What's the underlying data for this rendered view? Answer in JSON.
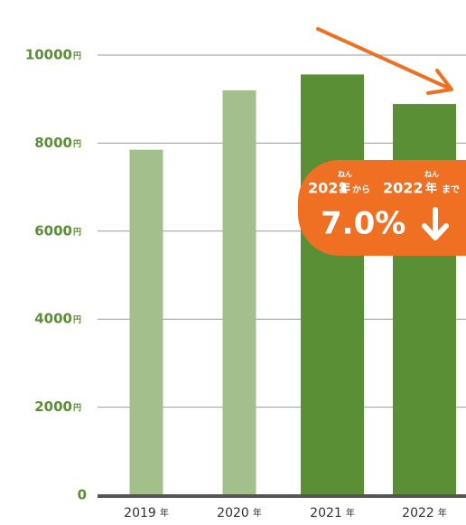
{
  "chart_data": {
    "type": "bar",
    "categories": [
      "2019",
      "2020",
      "2021",
      "2022"
    ],
    "x_unit": "年",
    "values": [
      7850,
      9200,
      9560,
      8890
    ],
    "colors": [
      "#a3bf8c",
      "#a3bf8c",
      "#5b8f36",
      "#5b8f36"
    ],
    "ylim": [
      0,
      10000
    ],
    "yticks": [
      0,
      2000,
      4000,
      6000,
      8000,
      10000
    ],
    "y_unit": "円",
    "grid": true,
    "annotation": {
      "from": "2021",
      "from_unit": "年",
      "from_ruby": "ねん",
      "kara": "から",
      "to": "2022",
      "to_unit": "年",
      "to_ruby": "ねん",
      "made": "まで",
      "value": 7.0,
      "value_label": "7.0%"
    }
  }
}
